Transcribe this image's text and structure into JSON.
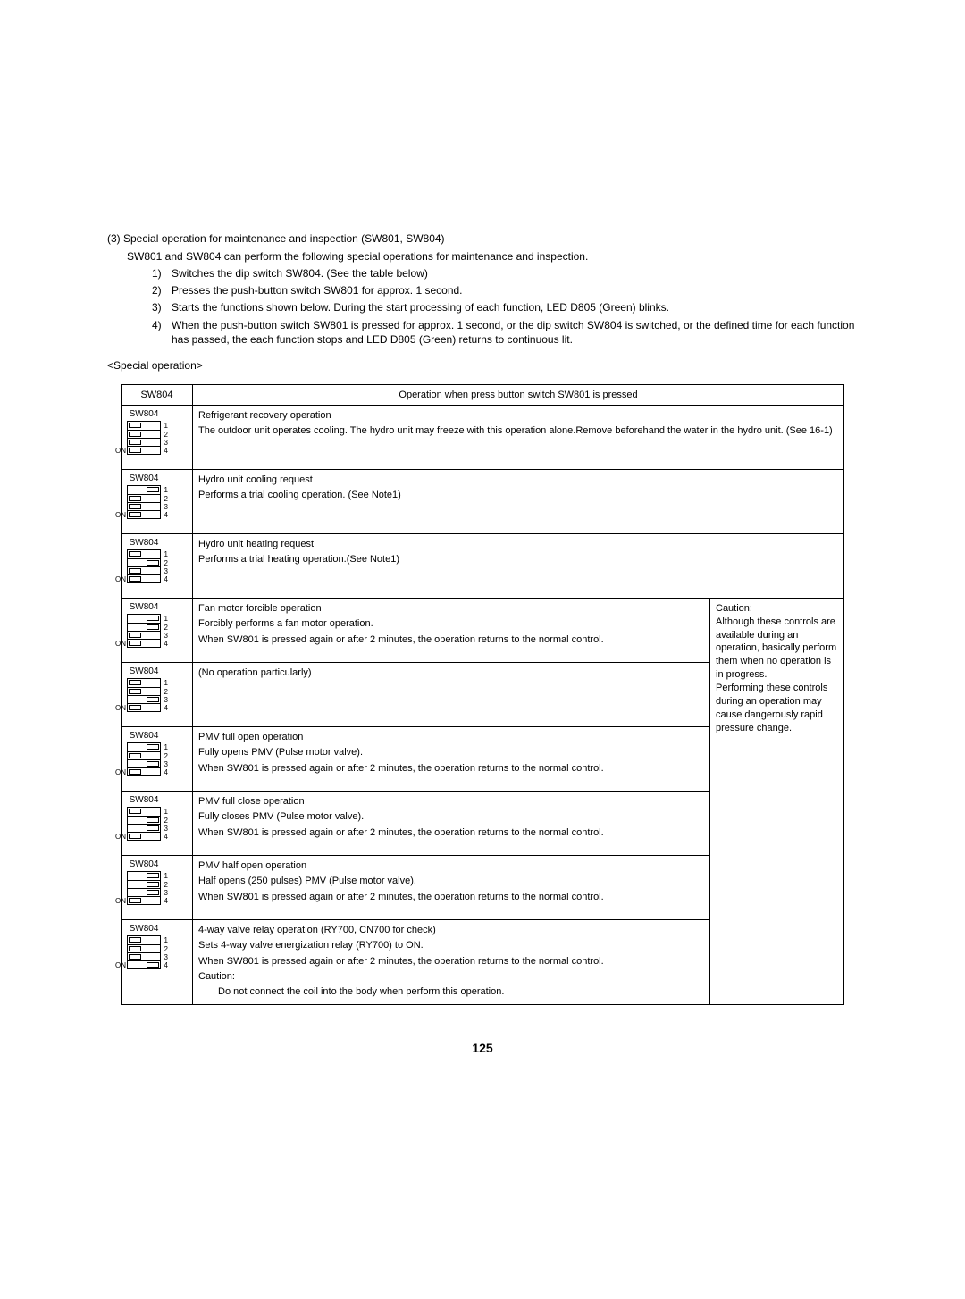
{
  "header": {
    "sectionTitle": "(3) Special operation for maintenance and inspection (SW801, SW804)",
    "intro": "SW801 and SW804 can perform the following special operations for maintenance and inspection.",
    "bullets": [
      {
        "num": "1)",
        "text": "Switches the dip switch SW804. (See the table below)"
      },
      {
        "num": "2)",
        "text": "Presses the push-button switch SW801 for approx. 1 second."
      },
      {
        "num": "3)",
        "text": "Starts the functions shown below. During the start processing of each function, LED D805 (Green) blinks."
      },
      {
        "num": "4)",
        "text": "When the push-button switch SW801 is pressed for approx. 1 second, or the dip switch SW804 is switched, or the defined time for each function has passed, the each function stops and LED D805 (Green) returns to continuous lit."
      }
    ],
    "specialOp": "<Special operation>"
  },
  "table": {
    "head": {
      "sw": "SW804",
      "op": "Operation when press button switch SW801 is pressed"
    },
    "dipLabel": "SW804",
    "rows": [
      {
        "dip": [
          "off",
          "off",
          "off",
          "off"
        ],
        "desc": [
          {
            "t": "Refrigerant recovery operation"
          },
          {
            "t": "The outdoor unit operates cooling. The hydro unit may freeze with this operation alone.Remove beforehand the water in the hydro unit. (See 16-1)"
          }
        ],
        "wide": true
      },
      {
        "dip": [
          "on",
          "off",
          "off",
          "off"
        ],
        "desc": [
          {
            "t": "Hydro unit cooling request"
          },
          {
            "t": "Performs a trial cooling operation. (See Note1)"
          }
        ],
        "wide": true
      },
      {
        "dip": [
          "off",
          "on",
          "off",
          "off"
        ],
        "desc": [
          {
            "t": "Hydro unit heating request"
          },
          {
            "t": "Performs a trial heating operation.(See Note1)"
          }
        ],
        "wide": true
      },
      {
        "dip": [
          "on",
          "on",
          "off",
          "off"
        ],
        "desc": [
          {
            "t": "Fan motor forcible operation"
          },
          {
            "t": "Forcibly performs a fan motor operation."
          },
          {
            "t": "When SW801 is pressed again or after 2 minutes, the operation returns to the normal control."
          }
        ]
      },
      {
        "dip": [
          "off",
          "off",
          "on",
          "off"
        ],
        "desc": [
          {
            "t": "(No operation particularly)"
          }
        ]
      },
      {
        "dip": [
          "on",
          "off",
          "on",
          "off"
        ],
        "desc": [
          {
            "t": "PMV full open operation"
          },
          {
            "t": "Fully opens PMV (Pulse motor valve)."
          },
          {
            "t": "When SW801 is pressed again or after 2 minutes, the operation returns to the normal control."
          }
        ]
      },
      {
        "dip": [
          "off",
          "on",
          "on",
          "off"
        ],
        "desc": [
          {
            "t": "PMV full close operation"
          },
          {
            "t": "Fully closes PMV (Pulse motor valve)."
          },
          {
            "t": "When SW801 is pressed again or after 2 minutes, the operation returns to the normal control."
          }
        ]
      },
      {
        "dip": [
          "on",
          "on",
          "on",
          "off"
        ],
        "desc": [
          {
            "t": "PMV half open operation"
          },
          {
            "t": "Half opens (250 pulses) PMV (Pulse motor valve)."
          },
          {
            "t": "When SW801 is pressed again or after 2 minutes, the operation returns to the normal control."
          }
        ]
      },
      {
        "dip": [
          "off",
          "off",
          "off",
          "on"
        ],
        "desc": [
          {
            "t": "4-way valve relay operation (RY700, CN700 for check)"
          },
          {
            "t": "Sets 4-way valve energization relay (RY700) to ON."
          },
          {
            "t": "When SW801 is pressed again or after 2 minutes, the operation returns to the normal control."
          },
          {
            "t": "Caution:"
          },
          {
            "t": "Do not connect the coil into the body when perform this operation.",
            "indent": true
          }
        ]
      }
    ],
    "caution": "Caution:\nAlthough these controls are available during an operation, basically perform them when no operation is in progress.\nPerforming these controls during an operation may cause dangerously rapid pressure change."
  },
  "pageNum": "125"
}
